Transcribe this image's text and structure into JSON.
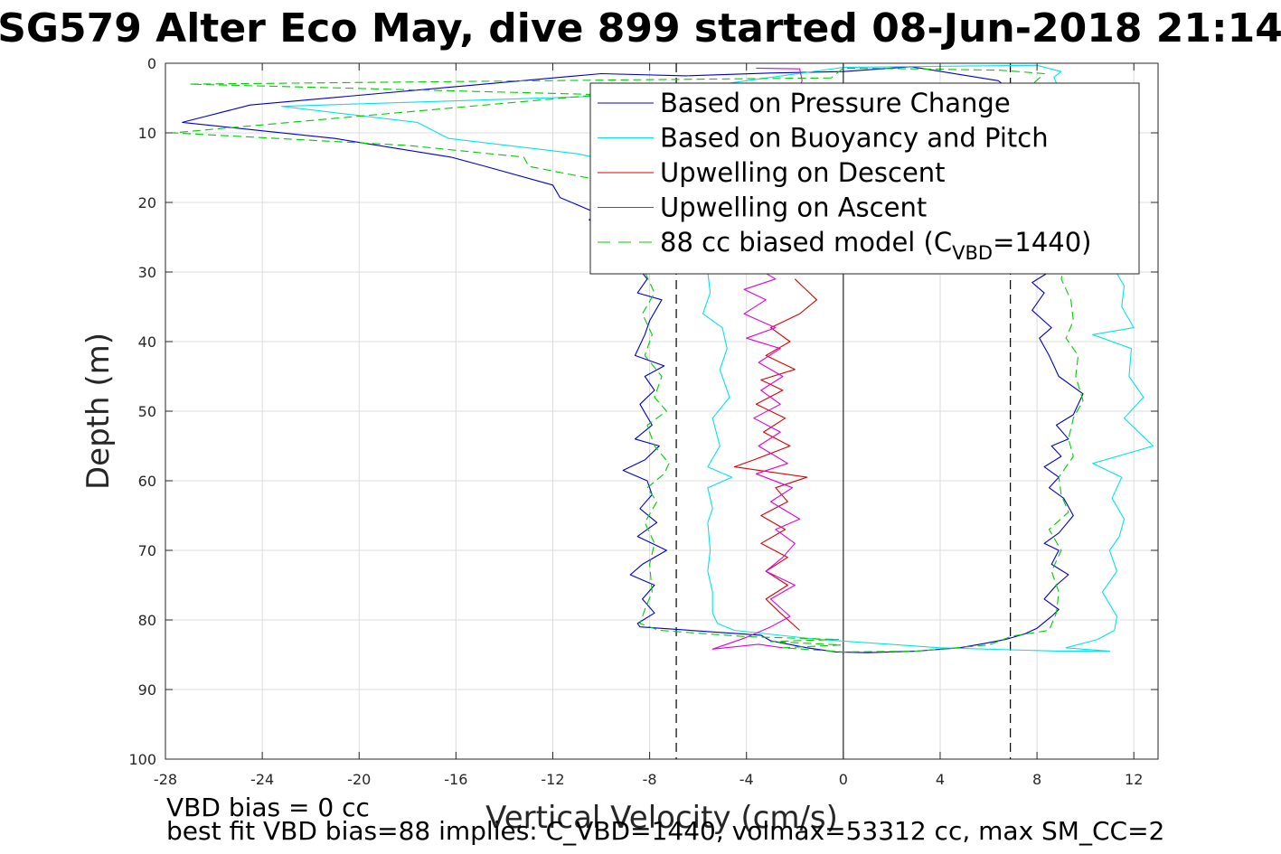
{
  "figure": {
    "title": "SG579 Alter Eco May, dive 899 started 08-Jun-2018 21:14",
    "footer_line1": "VBD bias = 0 cc",
    "footer_line2": "best fit VBD bias=88 implies: C_VBD=1440, volmax=53312 cc, max SM_CC=2"
  },
  "chart_data": {
    "type": "line",
    "xlabel": "Vertical Velocity (cm/s)",
    "ylabel": "Depth (m)",
    "xlim": [
      -28,
      13
    ],
    "ylim": [
      0,
      100
    ],
    "y_reversed": true,
    "xticks": [
      -28,
      -24,
      -20,
      -16,
      -12,
      -8,
      -4,
      0,
      4,
      8,
      12
    ],
    "yticks": [
      0,
      10,
      20,
      30,
      40,
      50,
      60,
      70,
      80,
      90,
      100
    ],
    "grid": true,
    "legend_location": "top-right",
    "reference_lines": {
      "vertical_dashed": [
        -6.9,
        6.9
      ],
      "vertical_solid": [
        0
      ]
    },
    "series": [
      {
        "name": "Based on Pressure Change",
        "color": "#0000cc",
        "style": "solid",
        "points": [
          [
            -10.0,
            1.5
          ],
          [
            -24.5,
            6.0
          ],
          [
            -27.3,
            8.5
          ],
          [
            -21.0,
            10.8
          ],
          [
            -16.2,
            13.5
          ],
          [
            -14.8,
            14.8
          ],
          [
            -12.0,
            17.5
          ],
          [
            -11.7,
            19.3
          ],
          [
            -10.2,
            21.5
          ],
          [
            -10.5,
            22.5
          ],
          [
            -9.2,
            25
          ],
          [
            -8.8,
            28
          ],
          [
            -8.1,
            31
          ],
          [
            -8.5,
            33
          ],
          [
            -7.5,
            34
          ],
          [
            -8.0,
            37
          ],
          [
            -8.2,
            39
          ],
          [
            -8.6,
            42
          ],
          [
            -7.4,
            43.5
          ],
          [
            -8.2,
            45
          ],
          [
            -7.8,
            47
          ],
          [
            -8.4,
            49
          ],
          [
            -7.9,
            52
          ],
          [
            -8.6,
            54
          ],
          [
            -7.6,
            55
          ],
          [
            -8.2,
            57
          ],
          [
            -9.1,
            58.5
          ],
          [
            -8.1,
            60
          ],
          [
            -7.9,
            62
          ],
          [
            -8.4,
            64
          ],
          [
            -7.7,
            66
          ],
          [
            -8.5,
            68
          ],
          [
            -7.3,
            70
          ],
          [
            -8.3,
            72
          ],
          [
            -8.8,
            73.5
          ],
          [
            -7.8,
            75
          ],
          [
            -8.3,
            77
          ],
          [
            -7.8,
            79
          ],
          [
            -8.5,
            80.5
          ],
          [
            -8.4,
            81
          ],
          [
            -3.4,
            82.2
          ],
          [
            -3.0,
            83.0
          ],
          [
            -1.5,
            84.0
          ],
          [
            -0.3,
            84.6
          ],
          [
            1.0,
            84.7
          ],
          [
            3.0,
            84.5
          ],
          [
            4.8,
            84.0
          ],
          [
            5.8,
            83.4
          ],
          [
            6.7,
            82.8
          ],
          [
            7.5,
            82.0
          ],
          [
            8.0,
            81.2
          ],
          [
            8.6,
            79.5
          ],
          [
            8.9,
            78.5
          ],
          [
            8.3,
            77
          ],
          [
            8.8,
            75
          ],
          [
            9.3,
            73.5
          ],
          [
            8.6,
            72
          ],
          [
            8.9,
            70
          ],
          [
            8.3,
            69
          ],
          [
            8.9,
            67.5
          ],
          [
            9.5,
            65
          ],
          [
            9.1,
            62.5
          ],
          [
            8.5,
            61
          ],
          [
            8.9,
            59.5
          ],
          [
            8.3,
            58
          ],
          [
            9.0,
            56.5
          ],
          [
            8.6,
            55
          ],
          [
            9.3,
            54
          ],
          [
            8.8,
            52
          ],
          [
            9.5,
            50.5
          ],
          [
            9.9,
            47.5
          ],
          [
            8.9,
            45
          ],
          [
            8.5,
            42
          ],
          [
            8.1,
            39.5
          ],
          [
            8.6,
            38
          ],
          [
            7.8,
            35.5
          ],
          [
            8.3,
            33
          ],
          [
            7.8,
            31.5
          ],
          [
            8.5,
            30
          ],
          [
            8.2,
            27
          ],
          [
            8.0,
            24
          ],
          [
            8.2,
            21
          ],
          [
            8.5,
            18
          ],
          [
            8.4,
            15
          ],
          [
            8.0,
            12
          ],
          [
            8.3,
            9
          ],
          [
            7.7,
            6
          ],
          [
            6.4,
            2.5
          ],
          [
            2.8,
            0.5
          ],
          [
            0,
            1.2
          ],
          [
            -3.0,
            1.4
          ],
          [
            -6.5,
            1.8
          ],
          [
            -10.0,
            1.5
          ]
        ]
      },
      {
        "name": "Based on Buoyancy and Pitch",
        "color": "#00e5e5",
        "style": "solid",
        "points": [
          [
            -8.0,
            4.5
          ],
          [
            -23.2,
            6.2
          ],
          [
            -17.6,
            8.5
          ],
          [
            -16.3,
            10.8
          ],
          [
            -11.0,
            13.0
          ],
          [
            -9.0,
            14.5
          ],
          [
            -7.5,
            17
          ],
          [
            -6.5,
            20
          ],
          [
            -5.8,
            25
          ],
          [
            -5.6,
            30
          ],
          [
            -5.5,
            33
          ],
          [
            -5.8,
            36
          ],
          [
            -5.0,
            38
          ],
          [
            -4.8,
            41
          ],
          [
            -5.1,
            44
          ],
          [
            -4.7,
            48
          ],
          [
            -5.4,
            51
          ],
          [
            -5.1,
            55
          ],
          [
            -5.6,
            58
          ],
          [
            -4.6,
            59.5
          ],
          [
            -5.6,
            61
          ],
          [
            -5.4,
            64
          ],
          [
            -5.6,
            66
          ],
          [
            -5.5,
            70
          ],
          [
            -5.6,
            73
          ],
          [
            -5.4,
            76
          ],
          [
            -5.4,
            79
          ],
          [
            -5.2,
            80.5
          ],
          [
            -4.5,
            81.5
          ],
          [
            -1.0,
            82.8
          ],
          [
            4.0,
            84.0
          ],
          [
            9.0,
            84.5
          ],
          [
            11.0,
            84.5
          ],
          [
            9.2,
            84.0
          ],
          [
            10.5,
            82.8
          ],
          [
            11.2,
            81.5
          ],
          [
            11.3,
            79.5
          ],
          [
            10.7,
            76
          ],
          [
            11.3,
            73
          ],
          [
            11.0,
            70
          ],
          [
            11.4,
            68
          ],
          [
            11.6,
            65.5
          ],
          [
            11.1,
            62.5
          ],
          [
            11.5,
            59.5
          ],
          [
            10.3,
            57.5
          ],
          [
            12.8,
            55
          ],
          [
            11.6,
            51
          ],
          [
            12.4,
            48
          ],
          [
            11.8,
            45
          ],
          [
            11.9,
            41
          ],
          [
            10.3,
            39
          ],
          [
            12.0,
            38
          ],
          [
            11.5,
            35
          ],
          [
            11.6,
            32
          ],
          [
            11.1,
            29
          ],
          [
            11.5,
            26
          ],
          [
            11.1,
            22
          ],
          [
            10.8,
            18
          ],
          [
            10.4,
            14
          ],
          [
            10.1,
            10
          ],
          [
            9.6,
            7
          ],
          [
            9.0,
            4.5
          ],
          [
            8.7,
            2
          ],
          [
            9.0,
            1.2
          ],
          [
            8.0,
            0.3
          ],
          [
            5.0,
            0.4
          ],
          [
            2.5,
            0.5
          ],
          [
            0,
            0.6
          ],
          [
            -4.0,
            2.5
          ],
          [
            -8.0,
            4.5
          ]
        ]
      },
      {
        "name": "Upwelling on Descent",
        "color": "#e00000",
        "style": "solid",
        "points": [
          [
            -2.0,
            31
          ],
          [
            -1.1,
            34
          ],
          [
            -1.8,
            36
          ],
          [
            -3.0,
            38
          ],
          [
            -2.2,
            40
          ],
          [
            -3.2,
            42
          ],
          [
            -2.0,
            44
          ],
          [
            -3.4,
            45.5
          ],
          [
            -2.5,
            47
          ],
          [
            -3.6,
            49
          ],
          [
            -2.4,
            51
          ],
          [
            -3.3,
            53
          ],
          [
            -2.2,
            55
          ],
          [
            -3.7,
            57
          ],
          [
            -4.5,
            58
          ],
          [
            -1.5,
            59.5
          ],
          [
            -2.8,
            61
          ],
          [
            -2.3,
            63
          ],
          [
            -3.4,
            65
          ],
          [
            -2.4,
            67
          ],
          [
            -3.4,
            69
          ],
          [
            -2.3,
            71
          ],
          [
            -3.2,
            73
          ],
          [
            -2.3,
            75
          ],
          [
            -3.2,
            77
          ],
          [
            -2.6,
            79
          ],
          [
            -1.8,
            81.5
          ]
        ]
      },
      {
        "name": "Upwelling on Ascent",
        "color": "#e000e0",
        "style": "solid",
        "points": [
          [
            -2.5,
            84
          ],
          [
            -3.5,
            83.5
          ],
          [
            -5.4,
            84.2
          ],
          [
            -4.0,
            82.5
          ],
          [
            -3.0,
            81
          ],
          [
            -2.2,
            79.5
          ],
          [
            -3.0,
            77
          ],
          [
            -2.0,
            75
          ],
          [
            -3.2,
            73
          ],
          [
            -2.5,
            71
          ],
          [
            -2.0,
            69
          ],
          [
            -2.8,
            67
          ],
          [
            -1.8,
            65.5
          ],
          [
            -3.0,
            63
          ],
          [
            -2.1,
            61
          ],
          [
            -3.6,
            59
          ],
          [
            -2.3,
            57.5
          ],
          [
            -3.5,
            55
          ],
          [
            -2.6,
            53
          ],
          [
            -3.7,
            51
          ],
          [
            -2.6,
            49
          ],
          [
            -3.4,
            47
          ],
          [
            -2.5,
            45
          ],
          [
            -3.5,
            43
          ],
          [
            -2.6,
            41
          ],
          [
            -4.0,
            39.5
          ],
          [
            -2.8,
            38
          ],
          [
            -4.1,
            36
          ],
          [
            -3.2,
            34
          ],
          [
            -4.1,
            32.5
          ],
          [
            -2.8,
            31
          ],
          [
            -3.8,
            29
          ],
          [
            -4.5,
            27
          ],
          [
            -3.5,
            25
          ],
          [
            -4.8,
            23
          ],
          [
            -3.8,
            21
          ],
          [
            -3.3,
            19
          ],
          [
            -4.2,
            17
          ],
          [
            -3.3,
            15
          ],
          [
            -4.3,
            13
          ],
          [
            -4.0,
            10
          ],
          [
            -3.0,
            8
          ],
          [
            -2.0,
            5
          ],
          [
            -1.7,
            2.5
          ],
          [
            -1.8,
            0.8
          ],
          [
            -3.6,
            0.7
          ]
        ]
      },
      {
        "name": "88 cc biased model (C_VBD=1440)",
        "legend_text": "88 cc biased model (C",
        "legend_sub": "VBD",
        "legend_tail": "=1440)",
        "color": "#00cc00",
        "style": "dashed",
        "points": [
          [
            -0.5,
            2.1
          ],
          [
            -27.0,
            3.0
          ],
          [
            -10.0,
            4.5
          ],
          [
            -27.7,
            10.0
          ],
          [
            -18.0,
            11.8
          ],
          [
            -13.2,
            13.5
          ],
          [
            -13.0,
            14.8
          ],
          [
            -10.5,
            16.5
          ],
          [
            -9.3,
            18.5
          ],
          [
            -8.8,
            22
          ],
          [
            -8.5,
            26
          ],
          [
            -8.2,
            30
          ],
          [
            -7.8,
            33
          ],
          [
            -8.3,
            36
          ],
          [
            -7.9,
            39
          ],
          [
            -8.2,
            42
          ],
          [
            -7.5,
            45
          ],
          [
            -7.8,
            48
          ],
          [
            -7.3,
            50
          ],
          [
            -8.1,
            52
          ],
          [
            -7.8,
            55
          ],
          [
            -7.2,
            57.5
          ],
          [
            -7.4,
            59
          ],
          [
            -8.1,
            61
          ],
          [
            -7.7,
            63
          ],
          [
            -8.2,
            66
          ],
          [
            -7.8,
            69
          ],
          [
            -8.0,
            72
          ],
          [
            -7.9,
            76
          ],
          [
            -8.2,
            78.5
          ],
          [
            -8.4,
            80.5
          ],
          [
            -7.6,
            81.5
          ],
          [
            -4.0,
            82.4
          ],
          [
            -0.2,
            82.8
          ],
          [
            -3.0,
            83.1
          ],
          [
            -0.1,
            83.6
          ],
          [
            -2.5,
            84.0
          ],
          [
            0,
            84.6
          ],
          [
            3.0,
            84.5
          ],
          [
            6.0,
            83.6
          ],
          [
            7.0,
            82.3
          ],
          [
            8.5,
            81.5
          ],
          [
            8.8,
            79
          ],
          [
            8.9,
            76
          ],
          [
            8.6,
            73
          ],
          [
            9.0,
            70
          ],
          [
            8.5,
            67
          ],
          [
            9.3,
            64.5
          ],
          [
            9.0,
            62
          ],
          [
            8.9,
            59.5
          ],
          [
            9.5,
            56.5
          ],
          [
            9.3,
            54
          ],
          [
            9.5,
            51
          ],
          [
            9.9,
            48.5
          ],
          [
            9.6,
            45
          ],
          [
            9.7,
            42
          ],
          [
            9.2,
            39.5
          ],
          [
            9.5,
            37
          ],
          [
            9.4,
            34
          ],
          [
            9.0,
            31
          ],
          [
            9.2,
            28
          ],
          [
            9.0,
            25
          ],
          [
            8.9,
            22
          ],
          [
            8.8,
            19
          ],
          [
            8.9,
            16
          ],
          [
            8.6,
            13
          ],
          [
            8.5,
            10
          ],
          [
            8.0,
            7
          ],
          [
            7.5,
            4
          ],
          [
            8.3,
            1.5
          ],
          [
            6.5,
            1.0
          ],
          [
            3.0,
            0.8
          ],
          [
            0,
            0.7
          ],
          [
            -0.5,
            2.1
          ]
        ]
      }
    ]
  }
}
